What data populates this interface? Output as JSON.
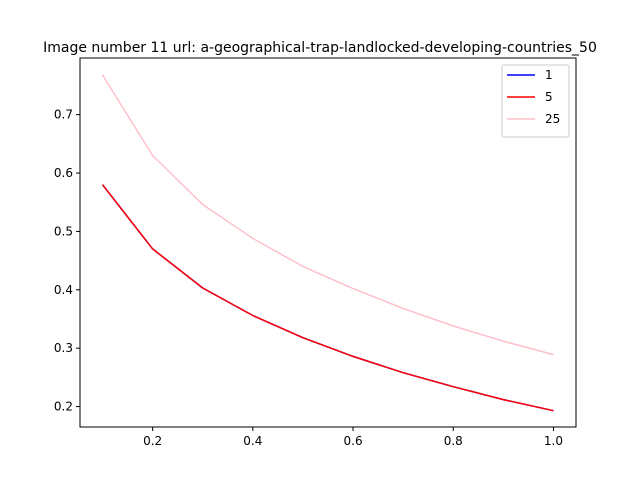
{
  "chart_data": {
    "type": "line",
    "title": "Image number 11 url: a-geographical-trap-landlocked-developing-countries_50",
    "xlabel": "",
    "ylabel": "",
    "x": [
      0.1,
      0.2,
      0.3,
      0.4,
      0.5,
      0.6,
      0.7,
      0.8,
      0.9,
      1.0
    ],
    "xlim": [
      0.055,
      1.045
    ],
    "ylim": [
      0.165,
      0.797
    ],
    "xticks": [
      "0.2",
      "0.4",
      "0.6",
      "0.8",
      "1.0"
    ],
    "xtick_values": [
      0.2,
      0.4,
      0.6,
      0.8,
      1.0
    ],
    "yticks": [
      "0.2",
      "0.3",
      "0.4",
      "0.5",
      "0.6",
      "0.7"
    ],
    "ytick_values": [
      0.2,
      0.3,
      0.4,
      0.5,
      0.6,
      0.7
    ],
    "grid": false,
    "legend_position": "top-right",
    "series": [
      {
        "name": "1",
        "color": "#0000ff",
        "values": [
          0.58,
          0.47,
          0.403,
          0.356,
          0.318,
          0.286,
          0.258,
          0.234,
          0.212,
          0.193
        ]
      },
      {
        "name": "5",
        "color": "#ff0000",
        "values": [
          0.58,
          0.47,
          0.403,
          0.356,
          0.318,
          0.286,
          0.258,
          0.234,
          0.212,
          0.193
        ]
      },
      {
        "name": "25",
        "color": "#ffc0cb",
        "values": [
          0.768,
          0.63,
          0.546,
          0.488,
          0.44,
          0.402,
          0.368,
          0.338,
          0.312,
          0.289
        ]
      }
    ]
  }
}
